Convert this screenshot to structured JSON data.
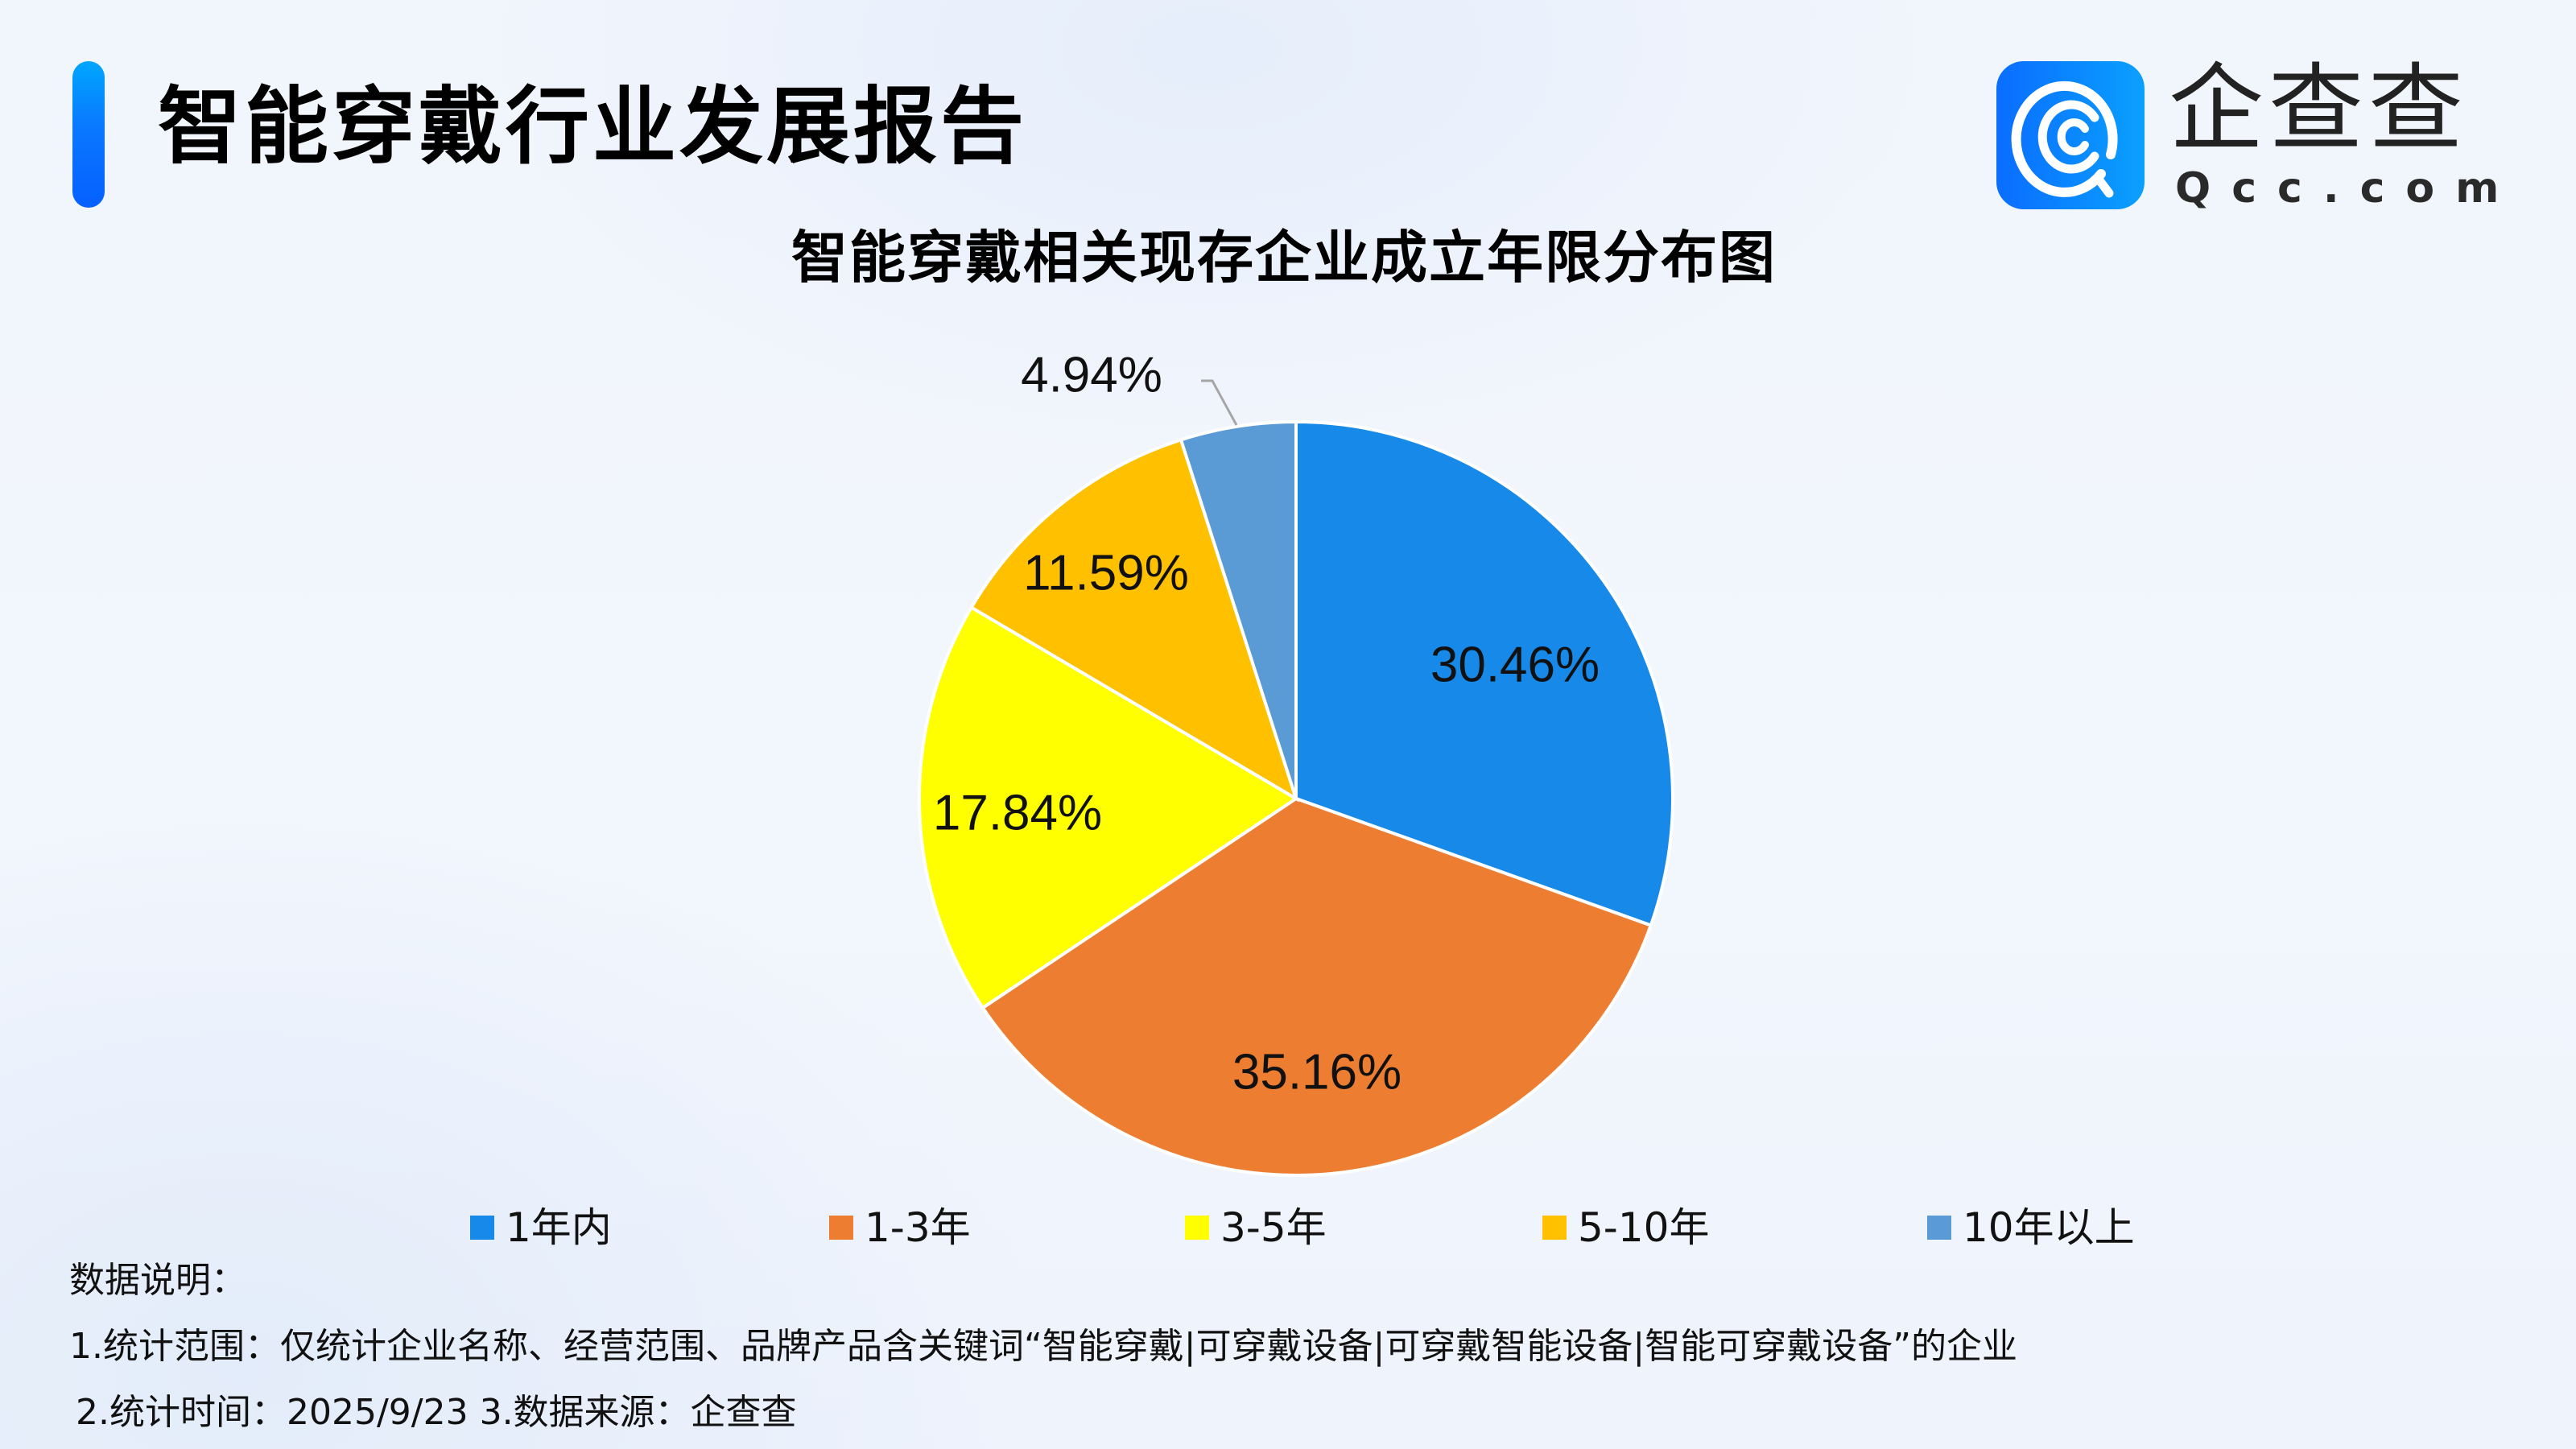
{
  "header": {
    "title": "智能穿戴行业发展报告",
    "logo": {
      "icon": "qcc-logo-icon",
      "name_cn": "企查查",
      "name_en": "Qcc.com"
    }
  },
  "colors": {
    "accent_bar_top": "#00a6ff",
    "accent_bar_bottom": "#0560ff",
    "slice_1": "#1789e9",
    "slice_2": "#ed7d31",
    "slice_3": "#ffff00",
    "slice_4": "#ffc000",
    "slice_5": "#5b9bd5",
    "leader_line": "#a6a6a6"
  },
  "chart_data": {
    "type": "pie",
    "title": "智能穿戴相关现存企业成立年限分布图",
    "categories": [
      "1年内",
      "1-3年",
      "3-5年",
      "5-10年",
      "10年以上"
    ],
    "values": [
      30.46,
      35.16,
      17.84,
      11.59,
      4.94
    ],
    "labels": [
      "30.46%",
      "35.16%",
      "17.84%",
      "11.59%",
      "4.94%"
    ],
    "unit": "%",
    "start_angle": "12 o'clock",
    "direction": "clockwise",
    "legend_position": "bottom"
  },
  "legend": [
    {
      "label": "1年内"
    },
    {
      "label": "1-3年"
    },
    {
      "label": "3-5年"
    },
    {
      "label": "5-10年"
    },
    {
      "label": "10年以上"
    }
  ],
  "notes": {
    "heading": "数据说明：",
    "line1": "1.统计范围：仅统计企业名称、经营范围、品牌产品含关键词“智能穿戴|可穿戴设备|可穿戴智能设备|智能可穿戴设备”的企业",
    "line2": "2.统计时间：2025/9/23  3.数据来源：企查查"
  }
}
